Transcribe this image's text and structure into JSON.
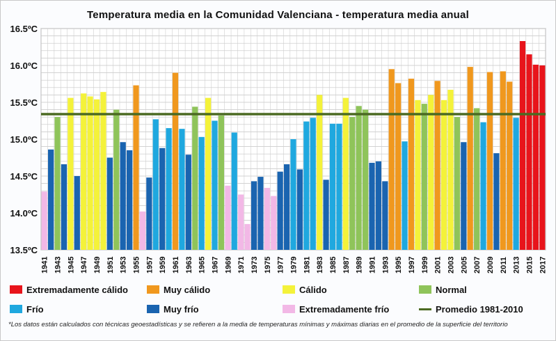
{
  "chart_data": {
    "type": "bar",
    "title": "Temperatura media en la Comunidad Valenciana - temperatura media anual",
    "ylim": [
      13.5,
      16.5
    ],
    "yticks": [
      "16.5ºC",
      "16.0ºC",
      "15.5ºC",
      "15.0ºC",
      "14.5ºC",
      "14.0ºC",
      "13.5ºC"
    ],
    "ytick_values": [
      16.5,
      16.0,
      15.5,
      15.0,
      14.5,
      14.0,
      13.5
    ],
    "x_tick_labels": [
      "1941",
      "1943",
      "1945",
      "1947",
      "1949",
      "1951",
      "1953",
      "1955",
      "1957",
      "1959",
      "1961",
      "1963",
      "1965",
      "1967",
      "1969",
      "1971",
      "1973",
      "1975",
      "1977",
      "1979",
      "1981",
      "1983",
      "1985",
      "1987",
      "1989",
      "1991",
      "1993",
      "1995",
      "1997",
      "1999",
      "2001",
      "2003",
      "2005",
      "2007",
      "2009",
      "2011",
      "2013",
      "2015",
      "2017"
    ],
    "grid": true,
    "years": [
      1941,
      1942,
      1943,
      1944,
      1945,
      1946,
      1947,
      1948,
      1949,
      1950,
      1951,
      1952,
      1953,
      1954,
      1955,
      1956,
      1957,
      1958,
      1959,
      1960,
      1961,
      1962,
      1963,
      1964,
      1965,
      1966,
      1967,
      1968,
      1969,
      1970,
      1971,
      1972,
      1973,
      1974,
      1975,
      1976,
      1977,
      1978,
      1979,
      1980,
      1981,
      1982,
      1983,
      1984,
      1985,
      1986,
      1987,
      1988,
      1989,
      1990,
      1991,
      1992,
      1993,
      1994,
      1995,
      1996,
      1997,
      1998,
      1999,
      2000,
      2001,
      2002,
      2003,
      2004,
      2005,
      2006,
      2007,
      2008,
      2009,
      2010,
      2011,
      2012,
      2013,
      2014,
      2015,
      2016,
      2017
    ],
    "values": [
      14.29,
      14.86,
      15.3,
      14.66,
      15.56,
      14.5,
      15.62,
      15.58,
      15.54,
      15.64,
      14.75,
      15.4,
      14.96,
      14.85,
      15.73,
      14.02,
      14.48,
      15.27,
      14.88,
      15.15,
      15.9,
      15.14,
      14.79,
      15.44,
      15.03,
      15.56,
      15.25,
      15.32,
      14.37,
      15.09,
      14.25,
      13.85,
      14.43,
      14.49,
      14.34,
      14.23,
      14.56,
      14.66,
      15.0,
      14.59,
      15.24,
      15.29,
      15.6,
      14.45,
      15.21,
      15.21,
      15.56,
      15.3,
      15.45,
      15.4,
      14.68,
      14.7,
      14.43,
      15.95,
      15.76,
      14.97,
      15.82,
      15.53,
      15.48,
      15.6,
      15.79,
      15.53,
      15.67,
      15.3,
      14.96,
      15.98,
      15.42,
      15.23,
      15.91,
      14.81,
      15.92,
      15.78,
      15.29,
      16.33,
      16.15,
      16.01,
      16.0
    ],
    "categories_per_year": [
      "ef",
      "mf",
      "n",
      "mf",
      "c",
      "mf",
      "c",
      "c",
      "c",
      "c",
      "mf",
      "n",
      "mf",
      "mf",
      "mc",
      "ef",
      "mf",
      "f",
      "mf",
      "f",
      "mc",
      "f",
      "mf",
      "n",
      "f",
      "c",
      "f",
      "n",
      "ef",
      "f",
      "ef",
      "ef",
      "mf",
      "mf",
      "ef",
      "ef",
      "mf",
      "mf",
      "f",
      "mf",
      "f",
      "f",
      "c",
      "mf",
      "f",
      "f",
      "c",
      "n",
      "n",
      "n",
      "mf",
      "mf",
      "mf",
      "mc",
      "mc",
      "f",
      "mc",
      "c",
      "n",
      "c",
      "mc",
      "c",
      "c",
      "n",
      "mf",
      "mc",
      "n",
      "f",
      "mc",
      "mf",
      "mc",
      "mc",
      "f",
      "ec",
      "ec",
      "ec",
      "ec"
    ],
    "reference_line": {
      "name": "Promedio 1981-2010",
      "value": 15.34,
      "color": "#4b6a22"
    },
    "series": [
      {
        "key": "ec",
        "name": "Extremadamente cálido",
        "color": "#e8141b"
      },
      {
        "key": "mc",
        "name": "Muy cálido",
        "color": "#f0981e"
      },
      {
        "key": "c",
        "name": "Cálido",
        "color": "#f4f23a"
      },
      {
        "key": "n",
        "name": "Normal",
        "color": "#8fc45a"
      },
      {
        "key": "f",
        "name": "Frío",
        "color": "#1fa8df"
      },
      {
        "key": "mf",
        "name": "Muy frío",
        "color": "#1a64b0"
      },
      {
        "key": "ef",
        "name": "Extremadamente frío",
        "color": "#f2b8e6"
      }
    ],
    "legend_position": "bottom"
  },
  "footnote": "*Los datos están calculados con técnicas geoestadísticas y se refieren a la media de temperaturas mínimas y máximas diarias en el promedio de la superficie del territorio"
}
